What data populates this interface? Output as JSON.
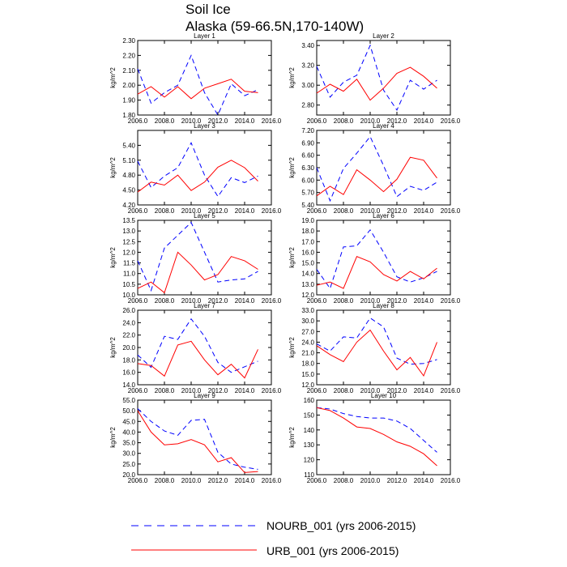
{
  "figure": {
    "title_line1": "Soil Ice",
    "title_line2": "Alaska (59-66.5N,170-140W)"
  },
  "legend": [
    {
      "label": "NOURB_001 (yrs 2006-2015)",
      "color": "#0000ff",
      "dash": "dashed"
    },
    {
      "label": "URB_001 (yrs 2006-2015)",
      "color": "#ff0000",
      "dash": "solid"
    }
  ],
  "chart_data": [
    {
      "type": "line",
      "title": "Layer 1",
      "ylabel": "kg/m^2",
      "xlim": [
        2006.0,
        2016.0
      ],
      "xticks": [
        2006,
        2008,
        2010,
        2012,
        2014,
        2016
      ],
      "ylim": [
        1.8,
        2.3
      ],
      "yticks": [
        1.8,
        1.9,
        2.0,
        2.1,
        2.2,
        2.3
      ],
      "ydec": 2,
      "x": [
        2006,
        2007,
        2008,
        2009,
        2010,
        2011,
        2012,
        2013,
        2014,
        2015
      ],
      "series": [
        {
          "name": "NOURB_001",
          "values": [
            2.11,
            1.88,
            1.95,
            2.0,
            2.2,
            1.95,
            1.8,
            2.01,
            1.93,
            1.97
          ]
        },
        {
          "name": "URB_001",
          "values": [
            1.94,
            1.99,
            1.92,
            1.99,
            1.91,
            1.98,
            2.01,
            2.04,
            1.96,
            1.95
          ]
        }
      ]
    },
    {
      "type": "line",
      "title": "Layer 2",
      "ylabel": "kg/m^2",
      "xlim": [
        2006.0,
        2016.0
      ],
      "xticks": [
        2006,
        2008,
        2010,
        2012,
        2014,
        2016
      ],
      "ylim": [
        2.7,
        3.45
      ],
      "yticks": [
        2.8,
        3.0,
        3.2,
        3.4
      ],
      "ydec": 2,
      "x": [
        2006,
        2007,
        2008,
        2009,
        2010,
        2011,
        2012,
        2013,
        2014,
        2015
      ],
      "series": [
        {
          "name": "NOURB_001",
          "values": [
            3.19,
            2.88,
            3.03,
            3.1,
            3.4,
            2.95,
            2.75,
            3.05,
            2.96,
            3.05
          ]
        },
        {
          "name": "URB_001",
          "values": [
            2.92,
            3.01,
            2.94,
            3.06,
            2.85,
            2.97,
            3.12,
            3.18,
            3.09,
            2.97
          ]
        }
      ]
    },
    {
      "type": "line",
      "title": "Layer 3",
      "ylabel": "kg/m^2",
      "xlim": [
        2006.0,
        2016.0
      ],
      "xticks": [
        2006,
        2008,
        2010,
        2012,
        2014,
        2016
      ],
      "ylim": [
        4.2,
        5.7
      ],
      "yticks": [
        4.2,
        4.5,
        4.8,
        5.1,
        5.4
      ],
      "ydec": 2,
      "x": [
        2006,
        2007,
        2008,
        2009,
        2010,
        2011,
        2012,
        2013,
        2014,
        2015
      ],
      "series": [
        {
          "name": "NOURB_001",
          "values": [
            5.08,
            4.55,
            4.78,
            4.95,
            5.45,
            4.8,
            4.37,
            4.75,
            4.65,
            4.78
          ]
        },
        {
          "name": "URB_001",
          "values": [
            4.46,
            4.66,
            4.6,
            4.8,
            4.49,
            4.66,
            4.96,
            5.1,
            4.95,
            4.68
          ]
        }
      ]
    },
    {
      "type": "line",
      "title": "Layer 4",
      "ylabel": "kg/m^2",
      "xlim": [
        2006.0,
        2016.0
      ],
      "xticks": [
        2006,
        2008,
        2010,
        2012,
        2014,
        2016
      ],
      "ylim": [
        5.4,
        7.2
      ],
      "yticks": [
        5.4,
        5.7,
        6.0,
        6.3,
        6.6,
        6.9,
        7.2
      ],
      "ydec": 2,
      "x": [
        2006,
        2007,
        2008,
        2009,
        2010,
        2011,
        2012,
        2013,
        2014,
        2015
      ],
      "series": [
        {
          "name": "NOURB_001",
          "values": [
            6.3,
            5.5,
            6.28,
            6.65,
            7.05,
            6.35,
            5.6,
            5.85,
            5.75,
            5.95
          ]
        },
        {
          "name": "URB_001",
          "values": [
            5.62,
            5.85,
            5.65,
            6.25,
            6.0,
            5.72,
            6.02,
            6.55,
            6.48,
            6.05
          ]
        }
      ]
    },
    {
      "type": "line",
      "title": "Layer 5",
      "ylabel": "kg/m^2",
      "xlim": [
        2006.0,
        2016.0
      ],
      "xticks": [
        2006,
        2008,
        2010,
        2012,
        2014,
        2016
      ],
      "ylim": [
        10.0,
        13.5
      ],
      "yticks": [
        10.0,
        10.5,
        11.0,
        11.5,
        12.0,
        12.5,
        13.0,
        13.5
      ],
      "ydec": 1,
      "x": [
        2006,
        2007,
        2008,
        2009,
        2010,
        2011,
        2012,
        2013,
        2014,
        2015
      ],
      "series": [
        {
          "name": "NOURB_001",
          "values": [
            11.6,
            10.2,
            12.2,
            12.8,
            13.4,
            12.0,
            10.6,
            10.7,
            10.75,
            11.1
          ]
        },
        {
          "name": "URB_001",
          "values": [
            10.3,
            10.6,
            10.1,
            12.0,
            11.4,
            10.7,
            10.95,
            11.8,
            11.6,
            11.2
          ]
        }
      ]
    },
    {
      "type": "line",
      "title": "Layer 6",
      "ylabel": "kg/m^2",
      "xlim": [
        2006.0,
        2016.0
      ],
      "xticks": [
        2006,
        2008,
        2010,
        2012,
        2014,
        2016
      ],
      "ylim": [
        12.0,
        19.0
      ],
      "yticks": [
        12.0,
        13.0,
        14.0,
        15.0,
        16.0,
        17.0,
        18.0,
        19.0
      ],
      "ydec": 1,
      "x": [
        2006,
        2007,
        2008,
        2009,
        2010,
        2011,
        2012,
        2013,
        2014,
        2015
      ],
      "series": [
        {
          "name": "NOURB_001",
          "values": [
            14.4,
            12.6,
            16.5,
            16.6,
            18.1,
            16.0,
            13.7,
            13.2,
            13.6,
            14.2
          ]
        },
        {
          "name": "URB_001",
          "values": [
            12.9,
            13.2,
            12.6,
            15.6,
            15.1,
            13.9,
            13.3,
            14.2,
            13.5,
            14.5
          ]
        }
      ]
    },
    {
      "type": "line",
      "title": "Layer 7",
      "ylabel": "kg/m^2",
      "xlim": [
        2006.0,
        2016.0
      ],
      "xticks": [
        2006,
        2008,
        2010,
        2012,
        2014,
        2016
      ],
      "ylim": [
        14.0,
        26.0
      ],
      "yticks": [
        14.0,
        16.0,
        18.0,
        20.0,
        22.0,
        24.0,
        26.0
      ],
      "ydec": 1,
      "x": [
        2006,
        2007,
        2008,
        2009,
        2010,
        2011,
        2012,
        2013,
        2014,
        2015
      ],
      "series": [
        {
          "name": "NOURB_001",
          "values": [
            18.8,
            16.8,
            21.8,
            21.3,
            24.6,
            21.8,
            17.6,
            16.0,
            16.9,
            17.8
          ]
        },
        {
          "name": "URB_001",
          "values": [
            17.4,
            17.1,
            15.4,
            20.4,
            21.0,
            18.0,
            15.6,
            17.3,
            15.1,
            19.7
          ]
        }
      ]
    },
    {
      "type": "line",
      "title": "Layer 8",
      "ylabel": "kg/m^2",
      "xlim": [
        2006.0,
        2016.0
      ],
      "xticks": [
        2006,
        2008,
        2010,
        2012,
        2014,
        2016
      ],
      "ylim": [
        12.0,
        33.0
      ],
      "yticks": [
        12.0,
        15.0,
        18.0,
        21.0,
        24.0,
        27.0,
        30.0,
        33.0
      ],
      "ydec": 1,
      "x": [
        2006,
        2007,
        2008,
        2009,
        2010,
        2011,
        2012,
        2013,
        2014,
        2015
      ],
      "series": [
        {
          "name": "NOURB_001",
          "values": [
            23.5,
            21.5,
            25.5,
            25.2,
            30.8,
            28.3,
            19.5,
            17.8,
            18.0,
            19.1
          ]
        },
        {
          "name": "URB_001",
          "values": [
            23.0,
            20.5,
            18.5,
            24.0,
            27.4,
            21.5,
            16.2,
            19.7,
            14.5,
            24.0
          ]
        }
      ]
    },
    {
      "type": "line",
      "title": "Layer 9",
      "ylabel": "kg/m^2",
      "xlim": [
        2006.0,
        2016.0
      ],
      "xticks": [
        2006,
        2008,
        2010,
        2012,
        2014,
        2016
      ],
      "ylim": [
        20.0,
        55.0
      ],
      "yticks": [
        20.0,
        25.0,
        30.0,
        35.0,
        40.0,
        45.0,
        50.0,
        55.0
      ],
      "ydec": 1,
      "x": [
        2006,
        2007,
        2008,
        2009,
        2010,
        2011,
        2012,
        2013,
        2014,
        2015
      ],
      "series": [
        {
          "name": "NOURB_001",
          "values": [
            51.0,
            45.0,
            40.5,
            38.5,
            45.5,
            46.0,
            30.5,
            25.0,
            23.5,
            22.5
          ]
        },
        {
          "name": "URB_001",
          "values": [
            50.0,
            40.0,
            34.0,
            34.5,
            36.5,
            34.0,
            26.0,
            28.0,
            21.0,
            21.5
          ]
        }
      ]
    },
    {
      "type": "line",
      "title": "Layer 10",
      "ylabel": "kg/m^2",
      "xlim": [
        2006.0,
        2016.0
      ],
      "xticks": [
        2006,
        2008,
        2010,
        2012,
        2014,
        2016
      ],
      "ylim": [
        110,
        160
      ],
      "yticks": [
        110,
        120,
        130,
        140,
        150,
        160
      ],
      "ydec": 0,
      "x": [
        2006,
        2007,
        2008,
        2009,
        2010,
        2011,
        2012,
        2013,
        2014,
        2015
      ],
      "series": [
        {
          "name": "NOURB_001",
          "values": [
            155,
            154,
            151,
            149,
            148,
            148,
            146,
            141,
            133,
            125
          ]
        },
        {
          "name": "URB_001",
          "values": [
            155,
            153,
            148,
            142,
            141,
            137,
            132,
            129,
            124,
            116
          ]
        }
      ]
    }
  ]
}
